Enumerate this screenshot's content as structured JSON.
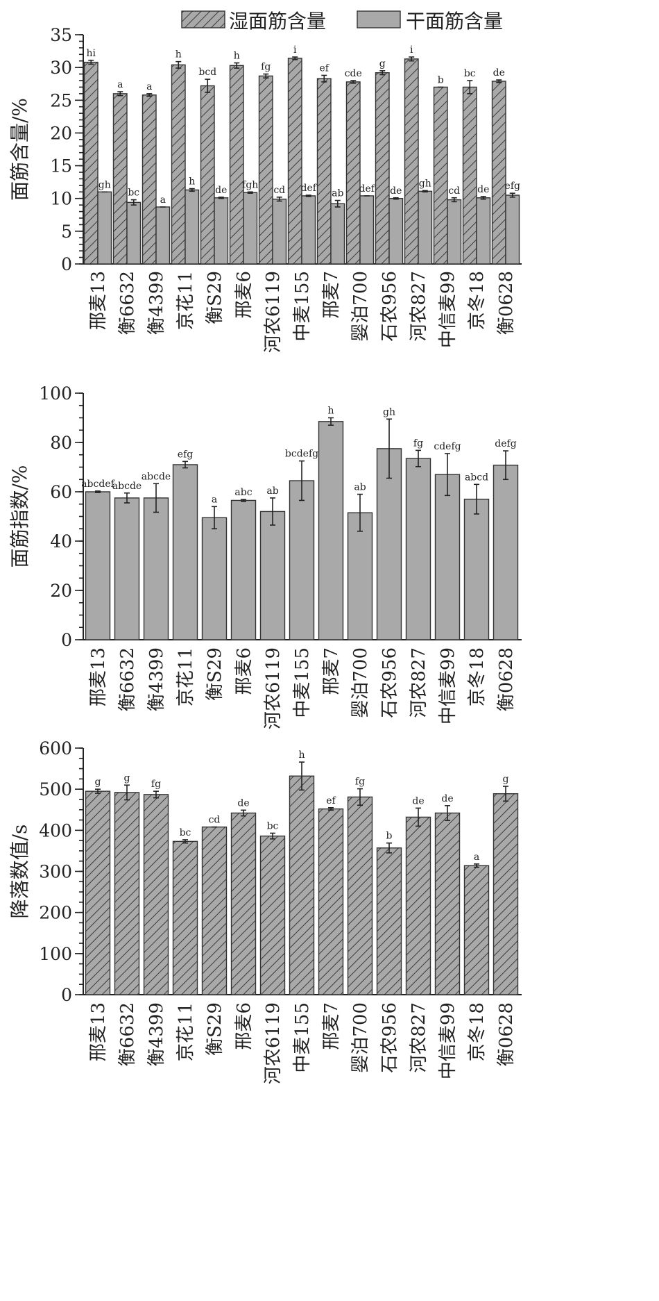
{
  "chart_data": [
    {
      "type": "bar",
      "ylabel": "面筋含量/%",
      "ylim": [
        0,
        35
      ],
      "yticks": [
        0,
        5,
        10,
        15,
        20,
        25,
        30,
        35
      ],
      "legend_position": "top",
      "categories": [
        "邢麦13",
        "衡6632",
        "衡4399",
        "京花11",
        "衡S29",
        "邢麦6",
        "河农6119",
        "中麦155",
        "邢麦7",
        "婴泊700",
        "石农956",
        "河农827",
        "中信麦99",
        "京冬18",
        "衡0628"
      ],
      "series": [
        {
          "name": "湿面筋含量",
          "pattern": "hatch",
          "color": "#a9a9a9",
          "values": [
            30.8,
            26.0,
            25.8,
            30.4,
            27.2,
            30.3,
            28.7,
            31.4,
            28.3,
            27.8,
            29.2,
            31.3,
            27.0,
            27.0,
            27.9
          ],
          "errors": [
            0.3,
            0.3,
            0.2,
            0.5,
            1.0,
            0.4,
            0.3,
            0.2,
            0.5,
            0.2,
            0.3,
            0.3,
            0.0,
            1.0,
            0.2
          ],
          "labels": [
            "hi",
            "a",
            "a",
            "h",
            "bcd",
            "h",
            "fg",
            "i",
            "ef",
            "cde",
            "g",
            "i",
            "b",
            "bc",
            "de"
          ]
        },
        {
          "name": "干面筋含量",
          "pattern": "solid",
          "color": "#a9a9a9",
          "values": [
            11.0,
            9.4,
            8.7,
            11.3,
            10.1,
            10.9,
            9.9,
            10.4,
            9.2,
            10.4,
            10.0,
            11.1,
            9.8,
            10.1,
            10.5
          ],
          "errors": [
            0.0,
            0.4,
            0.0,
            0.2,
            0.1,
            0.1,
            0.3,
            0.1,
            0.5,
            0.0,
            0.1,
            0.1,
            0.3,
            0.2,
            0.3
          ],
          "labels": [
            "gh",
            "bc",
            "a",
            "h",
            "de",
            "fgh",
            "cd",
            "def",
            "ab",
            "def",
            "de",
            "gh",
            "cd",
            "de",
            "efg"
          ]
        }
      ]
    },
    {
      "type": "bar",
      "ylabel": "面筋指数/%",
      "ylim": [
        0,
        100
      ],
      "yticks": [
        0,
        20,
        40,
        60,
        80,
        100
      ],
      "categories": [
        "邢麦13",
        "衡6632",
        "衡4399",
        "京花11",
        "衡S29",
        "邢麦6",
        "河农6119",
        "中麦155",
        "邢麦7",
        "婴泊700",
        "石农956",
        "河农827",
        "中信麦99",
        "京冬18",
        "衡0628"
      ],
      "series": [
        {
          "pattern": "solid",
          "color": "#a9a9a9",
          "values": [
            60.0,
            57.5,
            57.5,
            71.0,
            49.5,
            56.5,
            52.0,
            64.5,
            88.5,
            51.5,
            77.5,
            73.5,
            67.0,
            57.0,
            70.8
          ],
          "errors": [
            0.3,
            2.0,
            5.8,
            1.3,
            4.5,
            0.4,
            5.5,
            8.0,
            1.5,
            7.5,
            12.0,
            3.3,
            8.5,
            6.0,
            5.8
          ],
          "labels": [
            "abcdef",
            "abcde",
            "abcde",
            "efg",
            "a",
            "abc",
            "ab",
            "bcdefg",
            "h",
            "ab",
            "gh",
            "fg",
            "cdefg",
            "abcd",
            "defg"
          ]
        }
      ]
    },
    {
      "type": "bar",
      "ylabel": "降落数值/s",
      "ylim": [
        0,
        600
      ],
      "yticks": [
        0,
        100,
        200,
        300,
        400,
        500,
        600
      ],
      "categories": [
        "邢麦13",
        "衡6632",
        "衡4399",
        "京花11",
        "衡S29",
        "邢麦6",
        "河农6119",
        "中麦155",
        "邢麦7",
        "婴泊700",
        "石农956",
        "河农827",
        "中信麦99",
        "京冬18",
        "衡0628"
      ],
      "series": [
        {
          "pattern": "hatch",
          "color": "#a9a9a9",
          "values": [
            495,
            492,
            487,
            373,
            408,
            442,
            386,
            532,
            452,
            481,
            357,
            432,
            442,
            314,
            489
          ],
          "errors": [
            5,
            18,
            8,
            4,
            0,
            7,
            7,
            34,
            3,
            20,
            12,
            22,
            18,
            4,
            18
          ],
          "labels": [
            "g",
            "g",
            "fg",
            "bc",
            "cd",
            "de",
            "bc",
            "h",
            "ef",
            "fg",
            "b",
            "de",
            "de",
            "a",
            "g"
          ]
        }
      ]
    }
  ]
}
